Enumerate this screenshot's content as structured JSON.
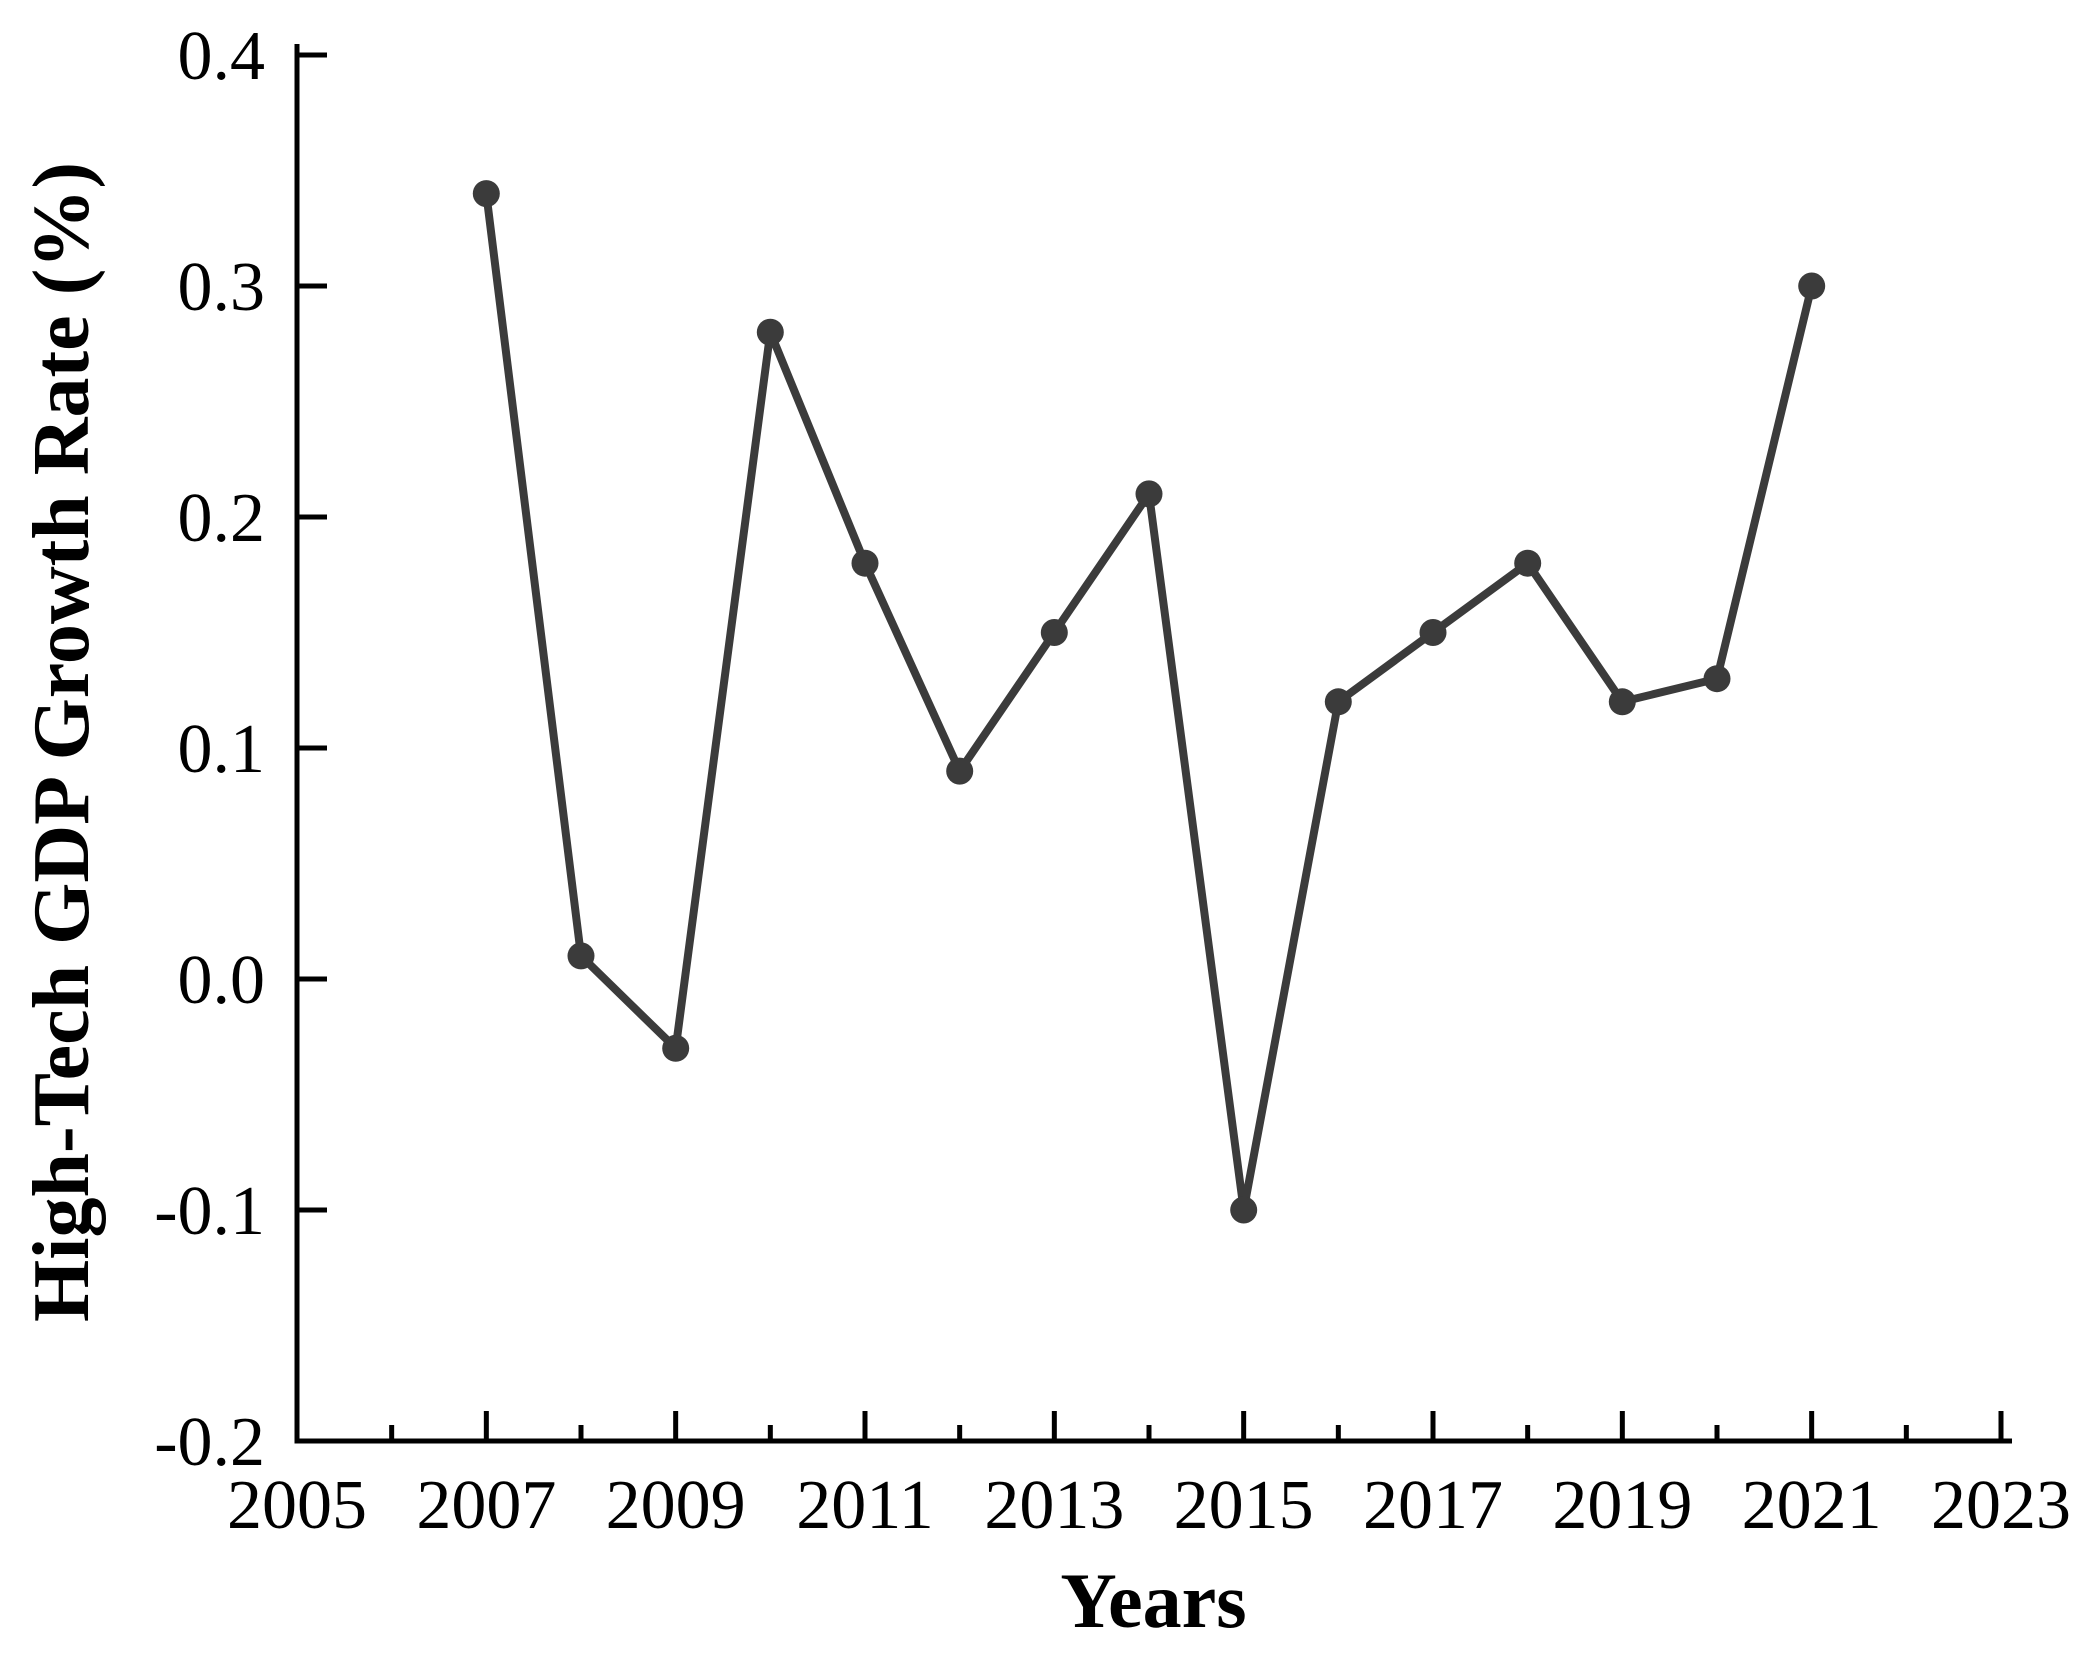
{
  "chart_data": {
    "type": "line",
    "title": "",
    "xlabel": "Years",
    "ylabel": "High-Tech GDP Growth Rate (%)",
    "x": [
      2007,
      2008,
      2009,
      2010,
      2011,
      2012,
      2013,
      2014,
      2015,
      2016,
      2017,
      2018,
      2019,
      2020,
      2021
    ],
    "values": [
      0.34,
      0.01,
      -0.03,
      0.28,
      0.18,
      0.09,
      0.15,
      0.21,
      -0.1,
      0.12,
      0.15,
      0.18,
      0.12,
      0.13,
      0.3
    ],
    "series_name": "High-Tech GDP Growth Rate",
    "xlim": [
      2005,
      2023
    ],
    "ylim": [
      -0.2,
      0.4
    ],
    "x_major_tick_labels": [
      "2005",
      "2007",
      "2009",
      "2011",
      "2013",
      "2015",
      "2017",
      "2019",
      "2021",
      "2023"
    ],
    "x_major_ticks": [
      2005,
      2007,
      2009,
      2011,
      2013,
      2015,
      2017,
      2019,
      2021,
      2023
    ],
    "x_minor_ticks": [
      2006,
      2008,
      2010,
      2012,
      2014,
      2016,
      2018,
      2020,
      2022
    ],
    "y_ticks": [
      {
        "value": -0.2,
        "label": "-0.2"
      },
      {
        "value": -0.1,
        "label": "-0.1"
      },
      {
        "value": 0.0,
        "label": "0.0"
      },
      {
        "value": 0.1,
        "label": "0.1"
      },
      {
        "value": 0.2,
        "label": "0.2"
      },
      {
        "value": 0.3,
        "label": "0.3"
      },
      {
        "value": 0.4,
        "label": "0.4"
      }
    ],
    "grid": false,
    "legend": false,
    "marker": "circle",
    "line_color": "#3b3b3b",
    "marker_color": "#3b3b3b",
    "axis_color": "#000000",
    "background_color": "#ffffff"
  }
}
